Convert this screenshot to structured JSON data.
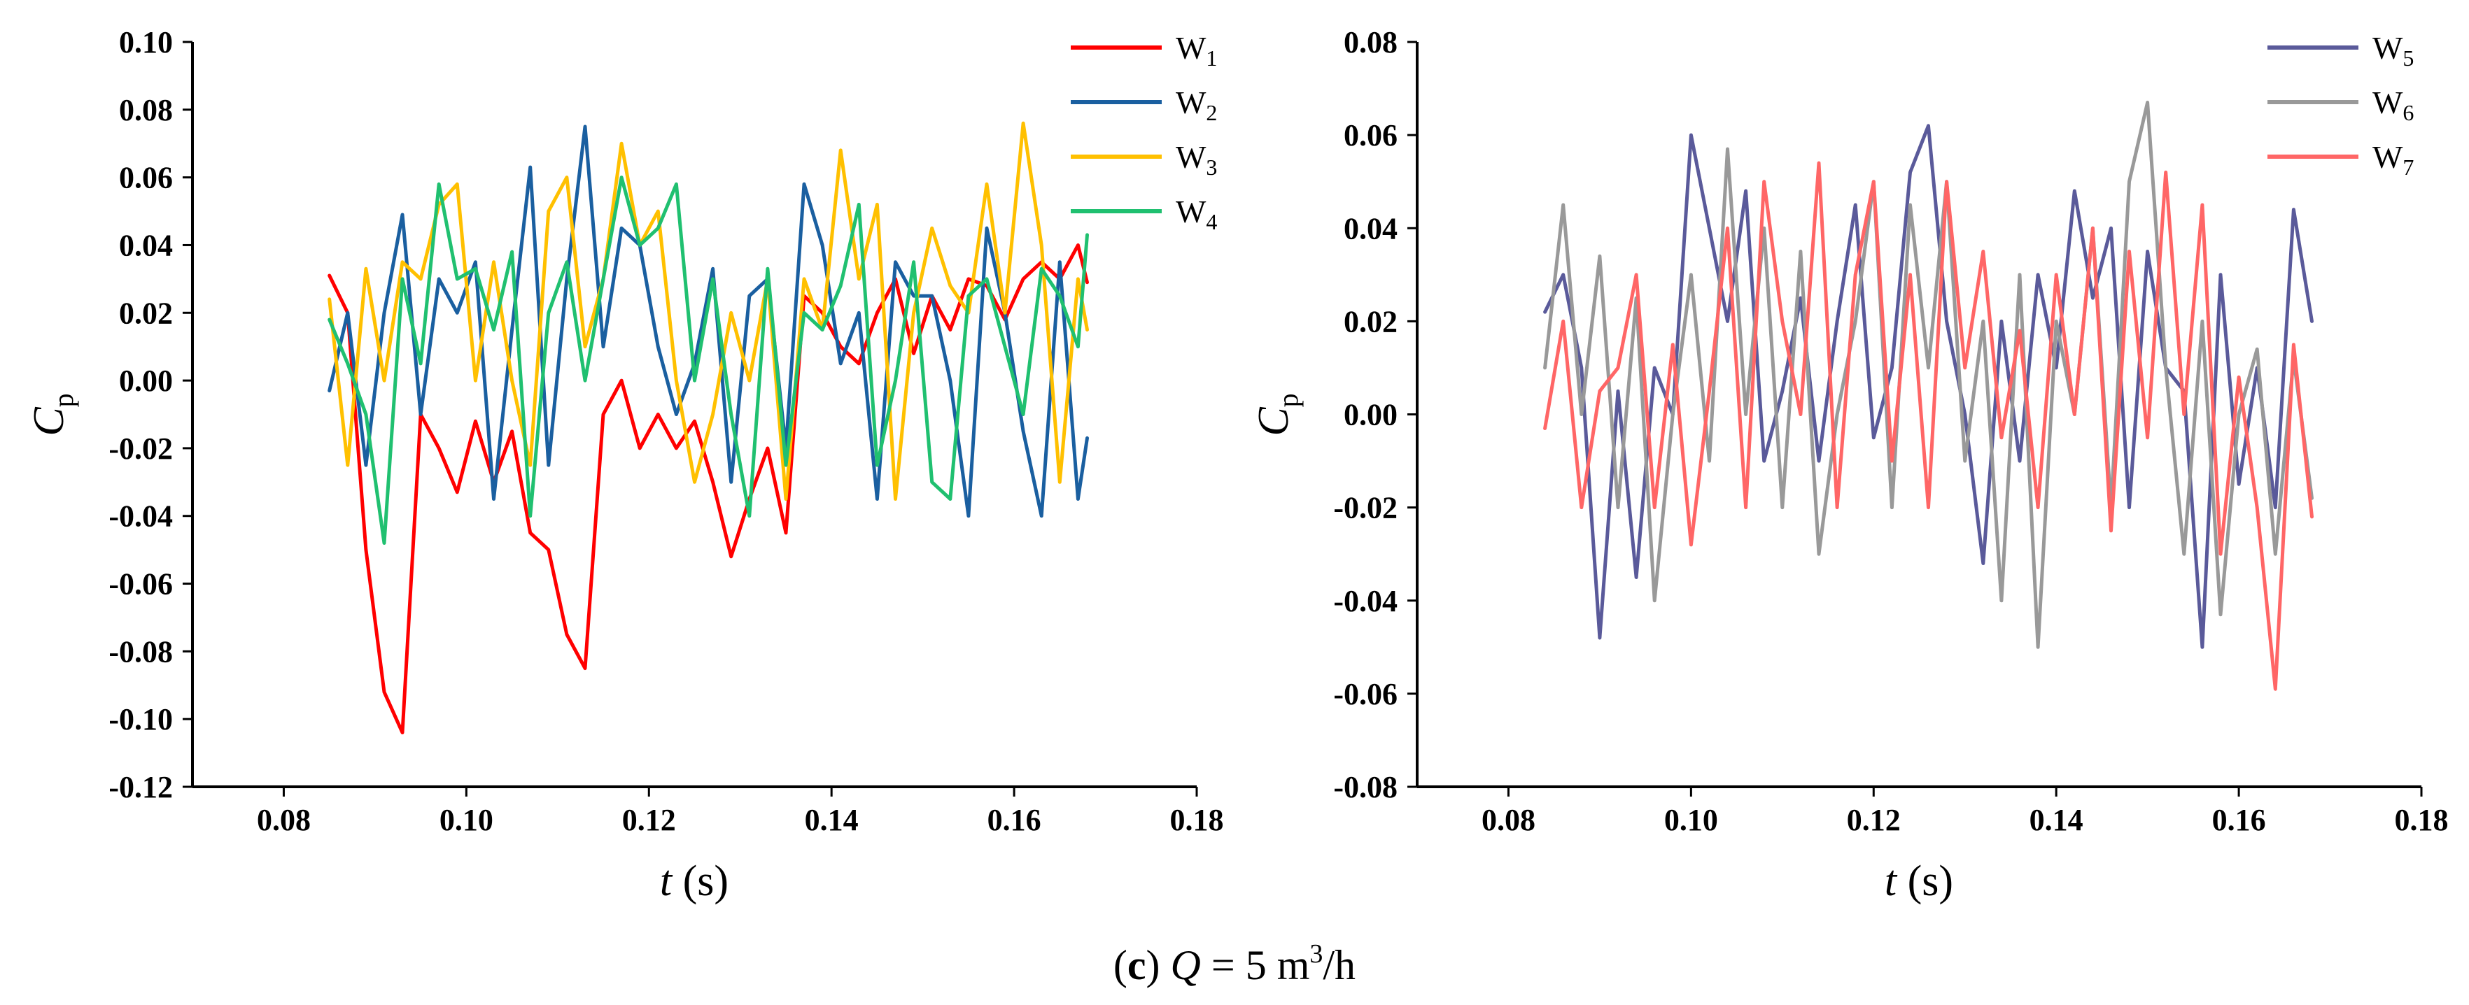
{
  "figure_caption": {
    "letter": "c",
    "open_paren": "(",
    "close_paren": ")",
    "var": "Q",
    "rest": " = 5 m",
    "sup": "3",
    "tail": "/h"
  },
  "chart_data": [
    {
      "type": "line",
      "xlabel": {
        "italic": "t",
        "unit": " (s)"
      },
      "ylabel": {
        "main": "C",
        "sub": "p"
      },
      "xlim": [
        0.07,
        0.18
      ],
      "ylim": [
        -0.12,
        0.1
      ],
      "xticks": [
        "0.08",
        "0.10",
        "0.12",
        "0.14",
        "0.16",
        "0.18"
      ],
      "xtick_values": [
        0.08,
        0.1,
        0.12,
        0.14,
        0.16,
        0.18
      ],
      "yticks": [
        "0.10",
        "0.08",
        "0.06",
        "0.04",
        "0.02",
        "0.00",
        "-0.02",
        "-0.04",
        "-0.06",
        "-0.08",
        "-0.10",
        "-0.12"
      ],
      "ytick_values": [
        0.1,
        0.08,
        0.06,
        0.04,
        0.02,
        0.0,
        -0.02,
        -0.04,
        -0.06,
        -0.08,
        -0.1,
        -0.12
      ],
      "legend_position": "top-right",
      "x": [
        0.085,
        0.087,
        0.089,
        0.091,
        0.093,
        0.095,
        0.097,
        0.099,
        0.101,
        0.103,
        0.105,
        0.107,
        0.109,
        0.111,
        0.113,
        0.115,
        0.117,
        0.119,
        0.121,
        0.123,
        0.125,
        0.127,
        0.129,
        0.131,
        0.133,
        0.135,
        0.137,
        0.139,
        0.141,
        0.143,
        0.145,
        0.147,
        0.149,
        0.151,
        0.153,
        0.155,
        0.157,
        0.159,
        0.161,
        0.163,
        0.165,
        0.167,
        0.168
      ],
      "series": [
        {
          "name": "W",
          "sub": "1",
          "color": "#ff0000",
          "values": [
            0.031,
            0.02,
            -0.05,
            -0.092,
            -0.104,
            -0.01,
            -0.02,
            -0.033,
            -0.012,
            -0.03,
            -0.015,
            -0.045,
            -0.05,
            -0.075,
            -0.085,
            -0.01,
            0.0,
            -0.02,
            -0.01,
            -0.02,
            -0.012,
            -0.03,
            -0.052,
            -0.035,
            -0.02,
            -0.045,
            0.025,
            0.02,
            0.01,
            0.005,
            0.02,
            0.03,
            0.008,
            0.025,
            0.015,
            0.03,
            0.028,
            0.018,
            0.03,
            0.035,
            0.03,
            0.04,
            0.029
          ]
        },
        {
          "name": "W",
          "sub": "2",
          "color": "#1a5fa0",
          "values": [
            -0.003,
            0.02,
            -0.025,
            0.02,
            0.049,
            -0.01,
            0.03,
            0.02,
            0.035,
            -0.035,
            0.015,
            0.063,
            -0.025,
            0.03,
            0.075,
            0.01,
            0.045,
            0.04,
            0.01,
            -0.01,
            0.005,
            0.033,
            -0.03,
            0.025,
            0.03,
            -0.02,
            0.058,
            0.04,
            0.005,
            0.02,
            -0.035,
            0.035,
            0.025,
            0.025,
            0.0,
            -0.04,
            0.045,
            0.02,
            -0.015,
            -0.04,
            0.035,
            -0.035,
            -0.017
          ]
        },
        {
          "name": "W",
          "sub": "3",
          "color": "#ffc000",
          "values": [
            0.024,
            -0.025,
            0.033,
            0.0,
            0.035,
            0.03,
            0.052,
            0.058,
            0.0,
            0.035,
            0.0,
            -0.025,
            0.05,
            0.06,
            0.01,
            0.03,
            0.07,
            0.04,
            0.05,
            0.0,
            -0.03,
            -0.01,
            0.02,
            0.0,
            0.03,
            -0.035,
            0.03,
            0.015,
            0.068,
            0.03,
            0.052,
            -0.035,
            0.02,
            0.045,
            0.028,
            0.02,
            0.058,
            0.02,
            0.076,
            0.04,
            -0.03,
            0.03,
            0.015
          ]
        },
        {
          "name": "W",
          "sub": "4",
          "color": "#20c070",
          "values": [
            0.018,
            0.005,
            -0.01,
            -0.048,
            0.03,
            0.005,
            0.058,
            0.03,
            0.033,
            0.015,
            0.038,
            -0.04,
            0.02,
            0.035,
            0.0,
            0.03,
            0.06,
            0.04,
            0.045,
            0.058,
            0.0,
            0.03,
            -0.01,
            -0.04,
            0.033,
            -0.025,
            0.02,
            0.015,
            0.028,
            0.052,
            -0.025,
            0.0,
            0.035,
            -0.03,
            -0.035,
            0.025,
            0.03,
            0.01,
            -0.01,
            0.033,
            0.025,
            0.01,
            0.043
          ]
        }
      ]
    },
    {
      "type": "line",
      "xlabel": {
        "italic": "t",
        "unit": " (s)"
      },
      "ylabel": {
        "main": "C",
        "sub": "p"
      },
      "xlim": [
        0.07,
        0.18
      ],
      "ylim": [
        -0.08,
        0.08
      ],
      "xticks": [
        "0.08",
        "0.10",
        "0.12",
        "0.14",
        "0.16",
        "0.18"
      ],
      "xtick_values": [
        0.08,
        0.1,
        0.12,
        0.14,
        0.16,
        0.18
      ],
      "yticks": [
        "0.08",
        "0.06",
        "0.04",
        "0.02",
        "0.00",
        "-0.02",
        "-0.04",
        "-0.06",
        "-0.08"
      ],
      "ytick_values": [
        0.08,
        0.06,
        0.04,
        0.02,
        0.0,
        -0.02,
        -0.04,
        -0.06,
        -0.08
      ],
      "legend_position": "top-right",
      "x": [
        0.084,
        0.086,
        0.088,
        0.09,
        0.092,
        0.094,
        0.096,
        0.098,
        0.1,
        0.102,
        0.104,
        0.106,
        0.108,
        0.11,
        0.112,
        0.114,
        0.116,
        0.118,
        0.12,
        0.122,
        0.124,
        0.126,
        0.128,
        0.13,
        0.132,
        0.134,
        0.136,
        0.138,
        0.14,
        0.142,
        0.144,
        0.146,
        0.148,
        0.15,
        0.152,
        0.154,
        0.156,
        0.158,
        0.16,
        0.162,
        0.164,
        0.166,
        0.168
      ],
      "series": [
        {
          "name": "W",
          "sub": "5",
          "color": "#5a5a9a",
          "values": [
            0.022,
            0.03,
            0.01,
            -0.048,
            0.005,
            -0.035,
            0.01,
            0.0,
            0.06,
            0.04,
            0.02,
            0.048,
            -0.01,
            0.005,
            0.025,
            -0.01,
            0.02,
            0.045,
            -0.005,
            0.01,
            0.052,
            0.062,
            0.02,
            0.0,
            -0.032,
            0.02,
            -0.01,
            0.03,
            0.01,
            0.048,
            0.025,
            0.04,
            -0.02,
            0.035,
            0.01,
            0.005,
            -0.05,
            0.03,
            -0.015,
            0.01,
            -0.02,
            0.044,
            0.02
          ]
        },
        {
          "name": "W",
          "sub": "6",
          "color": "#999999",
          "values": [
            0.01,
            0.045,
            0.0,
            0.034,
            -0.02,
            0.025,
            -0.04,
            0.0,
            0.03,
            -0.01,
            0.057,
            0.0,
            0.04,
            -0.02,
            0.035,
            -0.03,
            0.0,
            0.02,
            0.05,
            -0.02,
            0.045,
            0.01,
            0.05,
            -0.01,
            0.02,
            -0.04,
            0.03,
            -0.05,
            0.02,
            0.0,
            0.04,
            -0.02,
            0.05,
            0.067,
            0.01,
            -0.03,
            0.02,
            -0.043,
            0.0,
            0.014,
            -0.03,
            0.012,
            -0.018
          ]
        },
        {
          "name": "W",
          "sub": "7",
          "color": "#ff6666",
          "values": [
            -0.003,
            0.02,
            -0.02,
            0.005,
            0.01,
            0.03,
            -0.02,
            0.015,
            -0.028,
            0.005,
            0.04,
            -0.02,
            0.05,
            0.02,
            0.0,
            0.054,
            -0.02,
            0.03,
            0.05,
            -0.01,
            0.03,
            -0.02,
            0.05,
            0.01,
            0.035,
            -0.005,
            0.018,
            -0.02,
            0.03,
            0.0,
            0.04,
            -0.025,
            0.035,
            -0.005,
            0.052,
            0.0,
            0.045,
            -0.03,
            0.008,
            -0.02,
            -0.059,
            0.015,
            -0.022
          ]
        }
      ]
    }
  ]
}
